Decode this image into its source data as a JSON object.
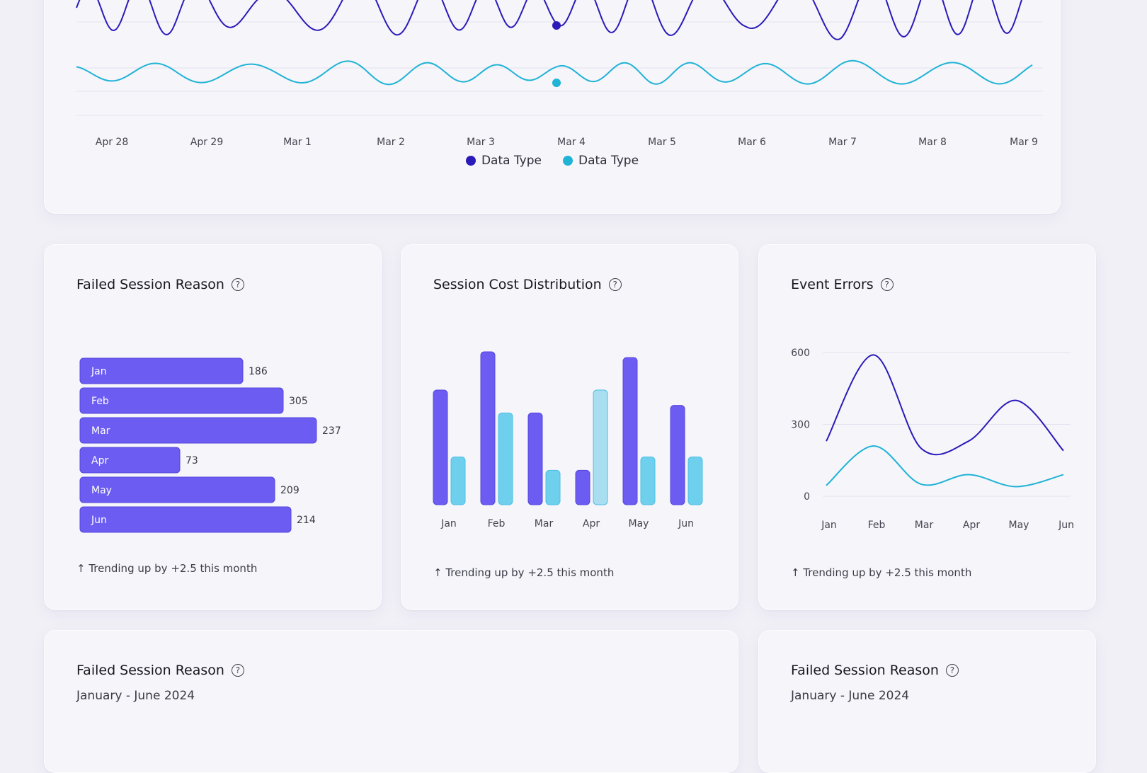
{
  "colors": {
    "primary": "#2a1bb8",
    "secondary": "#1fb3d6",
    "bar_purple": "#6c5cf2",
    "bar_cyan": "#6fd0ee",
    "bar_cyan_highlight": "#a8def0"
  },
  "timeline": {
    "x_labels": [
      "Apr 28",
      "Apr 29",
      "Mar 1",
      "Mar 2",
      "Mar 3",
      "Mar 4",
      "Mar 5",
      "Mar 6",
      "Mar 7",
      "Mar 8",
      "Mar 9"
    ],
    "legend": [
      {
        "label": "Data Type",
        "color": "#2a1bb8"
      },
      {
        "label": "Data Type",
        "color": "#1fb3d6"
      }
    ]
  },
  "failed_session": {
    "title": "Failed Session Reason",
    "trend": "↑ Trending up by +2.5 this month"
  },
  "session_cost": {
    "title": "Session Cost Distribution",
    "trend": "↑ Trending up by +2.5 this month"
  },
  "event_errors": {
    "title": "Event Errors",
    "trend": "↑ Trending up by +2.5 this month"
  },
  "bottom_left": {
    "title": "Failed Session Reason",
    "subtitle": "January - June 2024"
  },
  "bottom_right": {
    "title": "Failed Session Reason",
    "subtitle": "January - June 2024"
  },
  "chart_data": [
    {
      "type": "line",
      "x": [
        "Apr 28",
        "Apr 29",
        "Mar 1",
        "Mar 2",
        "Mar 3",
        "Mar 4",
        "Mar 5",
        "Mar 6",
        "Mar 7",
        "Mar 8",
        "Mar 9"
      ],
      "series": [
        {
          "name": "Data Type",
          "values": [
            40,
            55,
            30,
            60,
            45,
            35,
            60,
            40,
            65,
            55,
            50
          ]
        },
        {
          "name": "Data Type",
          "values": [
            12,
            18,
            15,
            22,
            16,
            12,
            20,
            15,
            22,
            18,
            20
          ]
        }
      ],
      "legend_position": "bottom"
    },
    {
      "type": "bar",
      "orientation": "horizontal",
      "categories": [
        "Jan",
        "Feb",
        "Mar",
        "Apr",
        "May",
        "Jun"
      ],
      "values": [
        186,
        305,
        237,
        73,
        209,
        214
      ]
    },
    {
      "type": "bar",
      "categories": [
        "Jan",
        "Feb",
        "Mar",
        "Apr",
        "May",
        "Jun"
      ],
      "series": [
        {
          "values": [
            6.0,
            8.0,
            4.8,
            1.8,
            7.7,
            5.2
          ]
        },
        {
          "values": [
            2.5,
            4.8,
            1.8,
            6.0,
            2.5,
            2.5
          ]
        }
      ]
    },
    {
      "type": "line",
      "categories": [
        "Jan",
        "Feb",
        "Mar",
        "Apr",
        "May",
        "Jun"
      ],
      "yticks": [
        0,
        300,
        600
      ],
      "ylim": [
        0,
        600
      ],
      "series": [
        {
          "values": [
            230,
            590,
            200,
            230,
            400,
            190
          ]
        },
        {
          "values": [
            45,
            210,
            50,
            90,
            40,
            90
          ]
        }
      ]
    }
  ]
}
